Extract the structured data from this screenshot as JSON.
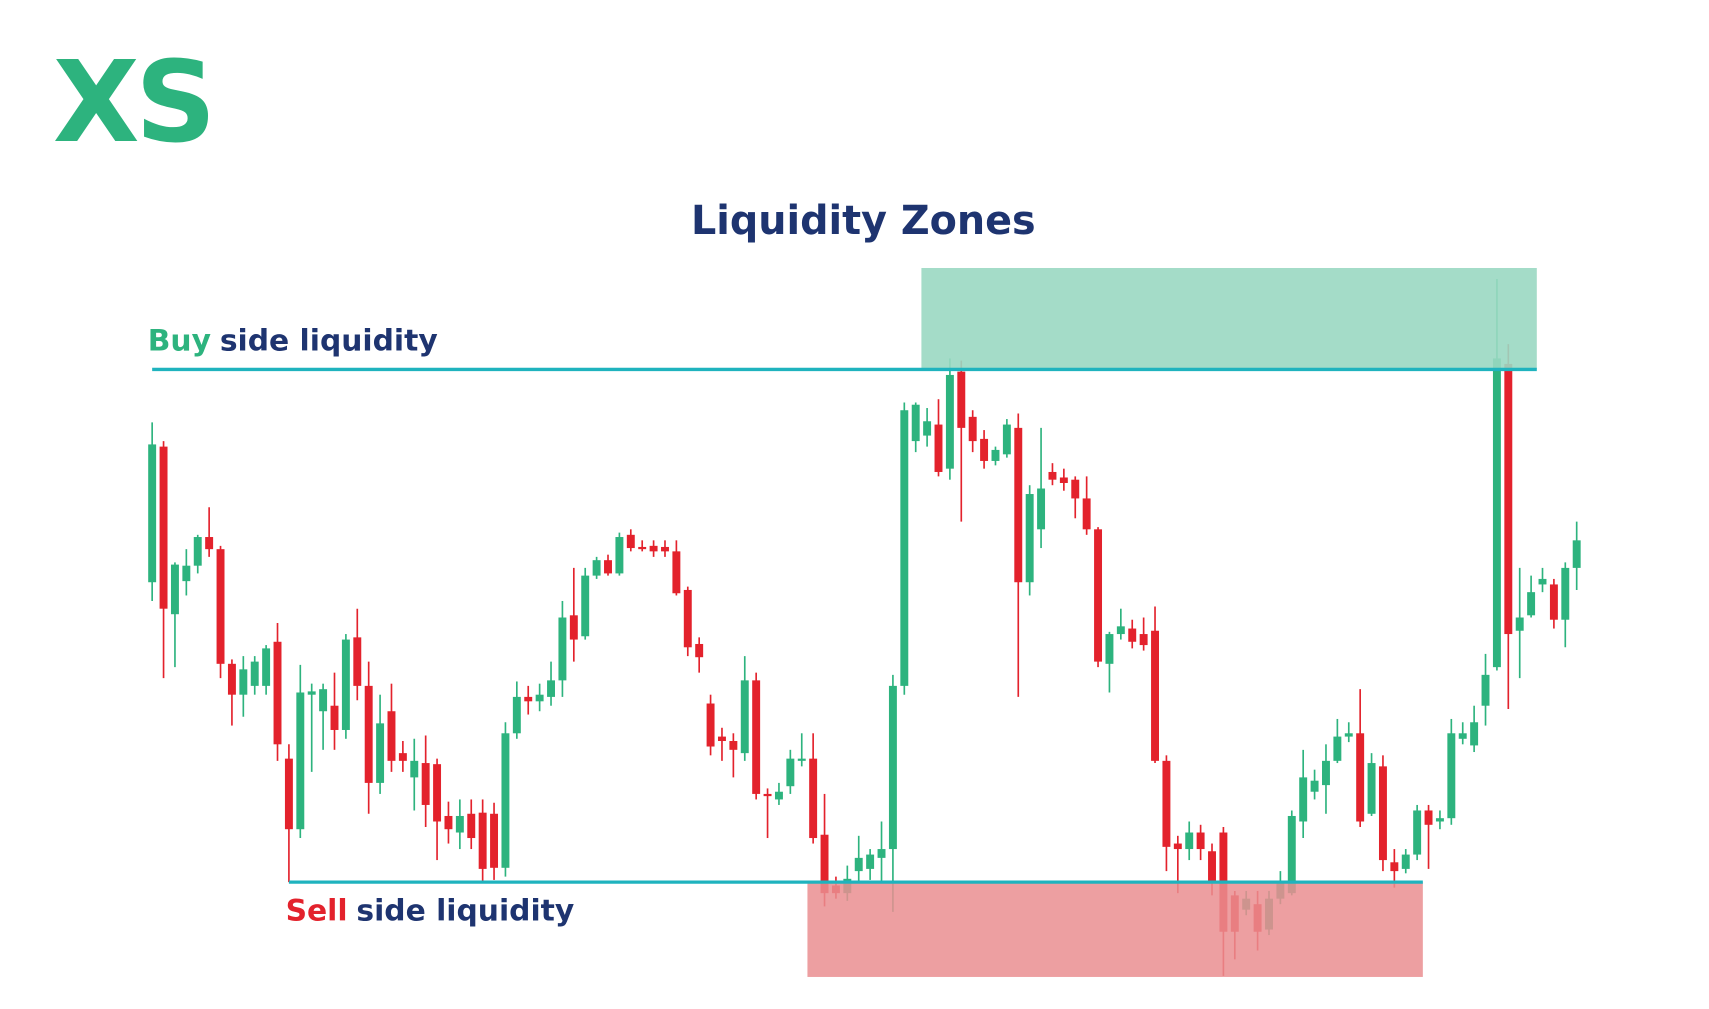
{
  "brand": {
    "logo": "XS"
  },
  "chart_data": {
    "type": "candlestick",
    "title": "Liquidity Zones",
    "up_color": "#2db37e",
    "down_color": "#e3222c",
    "level_color": "#1fb3be",
    "candles": [
      [
        372,
        517,
        355,
        497
      ],
      [
        495,
        500,
        285,
        348
      ],
      [
        343,
        390,
        295,
        388
      ],
      [
        373,
        402,
        360,
        387
      ],
      [
        387,
        415,
        380,
        413
      ],
      [
        413,
        440,
        395,
        402
      ],
      [
        402,
        405,
        285,
        298
      ],
      [
        298,
        302,
        242,
        270
      ],
      [
        270,
        305,
        250,
        293
      ],
      [
        278,
        305,
        270,
        300
      ],
      [
        278,
        315,
        270,
        312
      ],
      [
        318,
        335,
        210,
        225
      ],
      [
        212,
        225,
        100,
        148
      ],
      [
        148,
        297,
        140,
        272
      ],
      [
        270,
        280,
        200,
        273
      ],
      [
        255,
        280,
        220,
        275
      ],
      [
        260,
        290,
        220,
        238
      ],
      [
        238,
        325,
        230,
        320
      ],
      [
        322,
        348,
        265,
        278
      ],
      [
        278,
        300,
        162,
        190
      ],
      [
        190,
        270,
        180,
        244
      ],
      [
        255,
        280,
        200,
        210
      ],
      [
        217,
        228,
        200,
        210
      ],
      [
        195,
        230,
        165,
        210
      ],
      [
        208,
        233,
        150,
        170
      ],
      [
        207,
        212,
        120,
        155
      ],
      [
        160,
        173,
        135,
        148
      ],
      [
        145,
        175,
        130,
        160
      ],
      [
        162,
        175,
        130,
        140
      ],
      [
        163,
        175,
        100,
        112
      ],
      [
        162,
        172,
        102,
        113
      ],
      [
        113,
        245,
        105,
        235
      ],
      [
        235,
        282,
        230,
        268
      ],
      [
        268,
        278,
        252,
        264
      ],
      [
        264,
        280,
        255,
        270
      ],
      [
        268,
        300,
        260,
        283
      ],
      [
        283,
        355,
        268,
        340
      ],
      [
        342,
        385,
        300,
        320
      ],
      [
        323,
        385,
        320,
        378
      ],
      [
        378,
        395,
        375,
        392
      ],
      [
        392,
        397,
        378,
        380
      ],
      [
        380,
        417,
        378,
        413
      ],
      [
        415,
        420,
        400,
        403
      ],
      [
        404,
        410,
        400,
        402
      ],
      [
        405,
        410,
        395,
        400
      ],
      [
        404,
        410,
        395,
        400
      ],
      [
        400,
        410,
        360,
        362
      ],
      [
        365,
        368,
        305,
        313
      ],
      [
        316,
        322,
        290,
        304
      ],
      [
        262,
        270,
        215,
        223
      ],
      [
        232,
        240,
        210,
        228
      ],
      [
        228,
        235,
        195,
        220
      ],
      [
        217,
        305,
        210,
        283
      ],
      [
        283,
        290,
        175,
        180
      ],
      [
        180,
        185,
        140,
        178
      ],
      [
        175,
        190,
        170,
        182
      ],
      [
        187,
        220,
        180,
        212
      ],
      [
        210,
        235,
        205,
        212
      ],
      [
        212,
        235,
        135,
        140
      ],
      [
        143,
        180,
        78,
        90
      ],
      [
        97,
        105,
        85,
        90
      ],
      [
        90,
        115,
        83,
        103
      ],
      [
        110,
        142,
        100,
        122
      ],
      [
        112,
        130,
        102,
        125
      ],
      [
        122,
        155,
        100,
        130
      ],
      [
        130,
        288,
        73,
        278
      ],
      [
        278,
        535,
        270,
        528
      ],
      [
        500,
        535,
        490,
        533
      ],
      [
        505,
        530,
        495,
        518
      ],
      [
        515,
        538,
        468,
        472
      ],
      [
        475,
        575,
        465,
        560
      ],
      [
        563,
        573,
        427,
        512
      ],
      [
        522,
        528,
        490,
        500
      ],
      [
        502,
        510,
        475,
        482
      ],
      [
        482,
        495,
        478,
        492
      ],
      [
        488,
        520,
        485,
        515
      ],
      [
        512,
        525,
        268,
        372
      ],
      [
        372,
        460,
        360,
        452
      ],
      [
        420,
        512,
        403,
        457
      ],
      [
        472,
        480,
        460,
        465
      ],
      [
        467,
        475,
        455,
        462
      ],
      [
        465,
        468,
        430,
        448
      ],
      [
        448,
        468,
        415,
        420
      ],
      [
        420,
        422,
        295,
        300
      ],
      [
        298,
        327,
        272,
        325
      ],
      [
        325,
        348,
        320,
        332
      ],
      [
        330,
        338,
        312,
        318
      ],
      [
        325,
        340,
        310,
        315
      ],
      [
        328,
        350,
        208,
        210
      ],
      [
        210,
        215,
        110,
        132
      ],
      [
        135,
        142,
        90,
        130
      ],
      [
        130,
        155,
        120,
        145
      ],
      [
        145,
        152,
        120,
        130
      ],
      [
        128,
        135,
        88,
        100
      ],
      [
        145,
        150,
        15,
        55
      ],
      [
        88,
        92,
        30,
        55
      ],
      [
        75,
        92,
        70,
        85
      ],
      [
        80,
        92,
        38,
        55
      ],
      [
        57,
        92,
        52,
        85
      ],
      [
        85,
        110,
        80,
        100
      ],
      [
        90,
        165,
        88,
        160
      ],
      [
        155,
        220,
        140,
        195
      ],
      [
        182,
        202,
        175,
        192
      ],
      [
        188,
        225,
        162,
        210
      ],
      [
        210,
        248,
        208,
        232
      ],
      [
        232,
        245,
        227,
        235
      ],
      [
        235,
        275,
        150,
        155
      ],
      [
        162,
        217,
        160,
        208
      ],
      [
        205,
        215,
        110,
        120
      ],
      [
        118,
        130,
        95,
        110
      ],
      [
        112,
        130,
        108,
        125
      ],
      [
        125,
        170,
        120,
        165
      ],
      [
        165,
        170,
        112,
        152
      ],
      [
        155,
        165,
        148,
        158
      ],
      [
        158,
        248,
        152,
        235
      ],
      [
        230,
        245,
        225,
        235
      ],
      [
        224,
        260,
        218,
        245
      ],
      [
        260,
        307,
        242,
        288
      ],
      [
        295,
        647,
        292,
        575
      ],
      [
        570,
        588,
        257,
        325
      ],
      [
        328,
        385,
        285,
        340
      ],
      [
        342,
        378,
        340,
        363
      ],
      [
        370,
        385,
        363,
        375
      ],
      [
        370,
        375,
        330,
        338
      ],
      [
        338,
        390,
        313,
        385
      ],
      [
        385,
        427,
        365,
        410
      ]
    ],
    "buy_side": {
      "level": 565,
      "from": 0,
      "to": 121,
      "zone_from": 68,
      "zone_to": 121,
      "zone_high": 657,
      "zone_color": "#9ad8c2",
      "label_highlight": "Buy",
      "label_rest": "side liquidity"
    },
    "sell_side": {
      "level": 100,
      "from": 12,
      "to": 111,
      "zone_from": 58,
      "zone_to": 111,
      "zone_low": 14,
      "zone_color": "#ea8e90",
      "label_highlight": "Sell",
      "label_rest": "side liquidity"
    }
  }
}
